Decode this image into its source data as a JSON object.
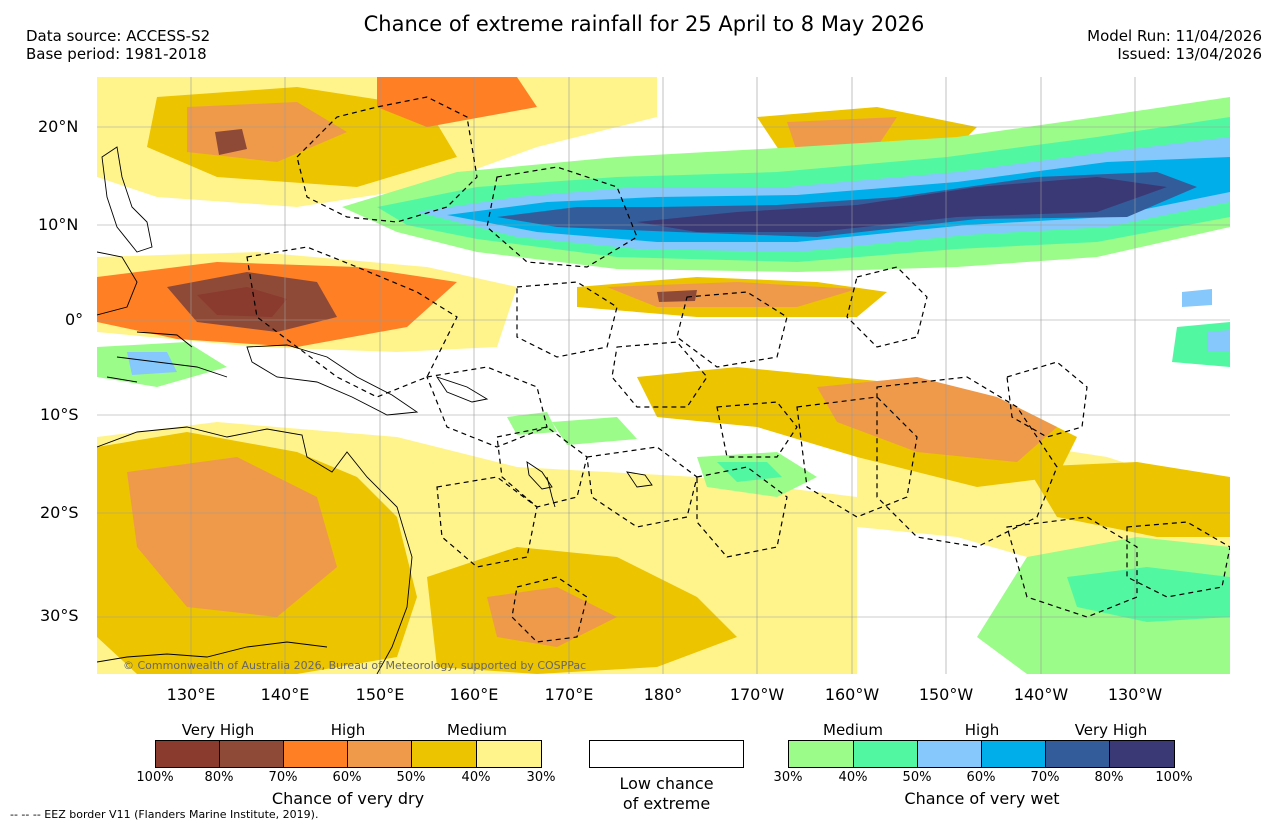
{
  "header": {
    "title": "Chance of extreme rainfall for 25 April to 8 May 2026",
    "data_source": "Data source: ACCESS-S2",
    "base_period": "Base period: 1981-2018",
    "model_run": "Model Run: 11/04/2026",
    "issued": "Issued: 13/04/2026"
  },
  "map": {
    "copyright": "© Commonwealth of Australia 2026, Bureau of Meteorology, supported by COSPPac",
    "lat_labels": [
      "20°N",
      "10°N",
      "0°",
      "10°S",
      "20°S",
      "30°S"
    ],
    "lon_labels": [
      "130°E",
      "140°E",
      "150°E",
      "160°E",
      "170°E",
      "180°",
      "170°W",
      "160°W",
      "150°W",
      "140°W",
      "130°W"
    ],
    "colors": {
      "dry_very_high_1": "#8b3a2e",
      "dry_very_high_2": "#8e4a37",
      "dry_high_1": "#ff7f25",
      "dry_high_2": "#ef9a4a",
      "dry_medium_1": "#ecc400",
      "dry_medium_2": "#fff48c",
      "wet_medium_1": "#9bfc89",
      "wet_medium_2": "#52f7a1",
      "wet_high_1": "#86c8fb",
      "wet_high_2": "#00aee9",
      "wet_very_high_1": "#335c9a",
      "wet_very_high_2": "#3b3876"
    }
  },
  "legend": {
    "dry": {
      "labels": [
        "Very High",
        "High",
        "Medium"
      ],
      "ticks": [
        "100%",
        "80%",
        "70%",
        "60%",
        "50%",
        "40%",
        "30%"
      ],
      "title": "Chance of very dry"
    },
    "low": {
      "line1": "Low chance",
      "line2": "of extreme"
    },
    "wet": {
      "labels": [
        "Medium",
        "High",
        "Very High"
      ],
      "ticks": [
        "30%",
        "40%",
        "50%",
        "60%",
        "70%",
        "80%",
        "100%"
      ],
      "title": "Chance of very wet"
    },
    "eez": "-- -- -- EEZ border V11 (Flanders Marine Institute, 2019)."
  }
}
